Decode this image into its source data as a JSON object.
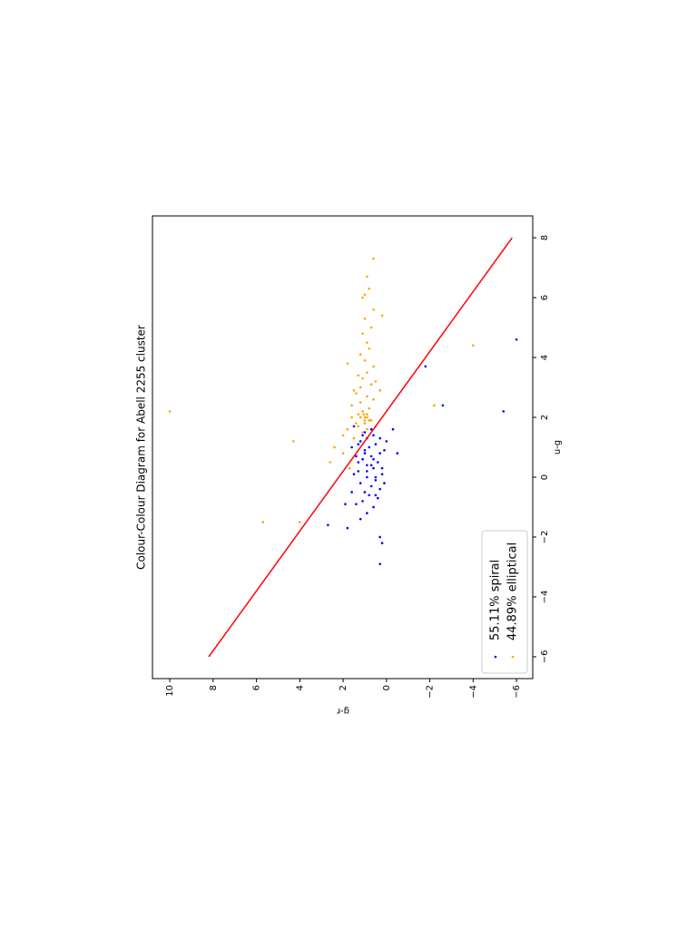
{
  "chart_data": {
    "type": "scatter",
    "title": "Colour-Colour Diagram for Abell 2255 cluster",
    "x_label": "u-g",
    "y_label": "g-r",
    "xlim": [
      -6.73,
      8.73
    ],
    "ylim": [
      -6.75,
      10.8
    ],
    "xticks": [
      {
        "value": -6,
        "label": "−6"
      },
      {
        "value": -4,
        "label": "−4"
      },
      {
        "value": -2,
        "label": "−2"
      },
      0,
      2,
      4,
      6,
      8
    ],
    "yticks": [
      {
        "value": -6,
        "label": "−6"
      },
      {
        "value": -4,
        "label": "−4"
      },
      {
        "value": -2,
        "label": "−2"
      },
      0,
      2,
      4,
      6,
      8,
      10
    ],
    "legend": "lower left",
    "series": [
      {
        "name": "55.11% spiral",
        "color": "#0000ff",
        "x": [
          -1.4,
          -1.2,
          -1.0,
          -0.9,
          -0.8,
          -0.7,
          -0.6,
          -0.5,
          -0.4,
          -0.3,
          -0.2,
          -0.1,
          0.0,
          0.1,
          0.2,
          0.3,
          0.4,
          0.5,
          0.6,
          0.7,
          0.8,
          0.9,
          1.0,
          1.1,
          1.2,
          1.3,
          1.4,
          1.5,
          1.6,
          1.7,
          -0.9,
          -0.5,
          -0.2,
          0.1,
          0.3,
          0.5,
          0.7,
          0.9,
          1.1,
          1.3,
          0.0,
          0.4,
          0.8,
          1.2,
          -0.6,
          0.2,
          0.6,
          1.0,
          1.4,
          -1.7,
          2.2,
          2.4,
          3.7,
          4.6,
          -2.9,
          -2.2,
          -2.0,
          -1.6,
          0.8,
          1.6
        ],
        "values": [
          1.2,
          0.9,
          0.6,
          1.4,
          1.1,
          0.4,
          0.8,
          1.0,
          0.3,
          0.7,
          1.2,
          0.5,
          0.9,
          0.2,
          1.3,
          0.6,
          0.9,
          0.4,
          1.1,
          0.7,
          0.3,
          1.0,
          0.8,
          0.5,
          1.2,
          0.9,
          0.6,
          1.0,
          0.7,
          1.5,
          1.9,
          1.6,
          0.1,
          1.5,
          0.2,
          1.3,
          1.4,
          0.1,
          1.3,
          0.3,
          0.5,
          0.7,
          1.0,
          0.0,
          0.5,
          0.9,
          0.6,
          1.6,
          1.1,
          1.8,
          -5.4,
          -2.6,
          -1.8,
          -6.0,
          0.3,
          0.2,
          0.3,
          2.7,
          -0.5,
          -0.3
        ]
      },
      {
        "name": "44.89% elliptical",
        "color": "#ffa500",
        "x": [
          1.5,
          1.6,
          1.7,
          1.8,
          1.9,
          2.0,
          2.1,
          2.2,
          1.8,
          1.9,
          2.0,
          2.1,
          2.3,
          2.5,
          2.7,
          2.9,
          3.1,
          3.3,
          3.5,
          3.7,
          3.9,
          4.1,
          4.3,
          4.5,
          4.8,
          5.0,
          5.3,
          5.6,
          6.0,
          6.3,
          6.7,
          7.3,
          2.4,
          2.6,
          2.8,
          3.0,
          3.2,
          1.6,
          1.7,
          2.0,
          1.3,
          1.0,
          0.8,
          0.5,
          0.3,
          1.4,
          2.2,
          -1.5,
          1.2,
          4.4,
          -1.5,
          2.4,
          3.8,
          5.4,
          6.1,
          2.9,
          3.4,
          1.9,
          2.0,
          2.1
        ],
        "values": [
          1.1,
          0.9,
          1.3,
          1.0,
          0.8,
          1.2,
          0.9,
          1.1,
          1.4,
          0.7,
          1.0,
          1.3,
          0.8,
          1.2,
          0.9,
          1.5,
          0.7,
          1.1,
          0.9,
          0.6,
          1.0,
          1.2,
          0.8,
          0.9,
          1.1,
          0.7,
          1.0,
          0.6,
          1.1,
          0.8,
          0.9,
          0.6,
          1.6,
          0.6,
          1.4,
          1.2,
          0.5,
          1.8,
          0.5,
          1.6,
          1.5,
          2.4,
          2.0,
          2.6,
          1.7,
          2.0,
          10.0,
          5.7,
          4.3,
          -4.0,
          4.0,
          -2.2,
          1.8,
          0.2,
          1.0,
          0.3,
          1.3,
          1.0,
          0.9,
          1.05
        ]
      },
      {
        "type": "line",
        "color": "#ff0000",
        "x": [
          -6,
          8
        ],
        "values": [
          8.2,
          -5.8
        ]
      }
    ]
  }
}
